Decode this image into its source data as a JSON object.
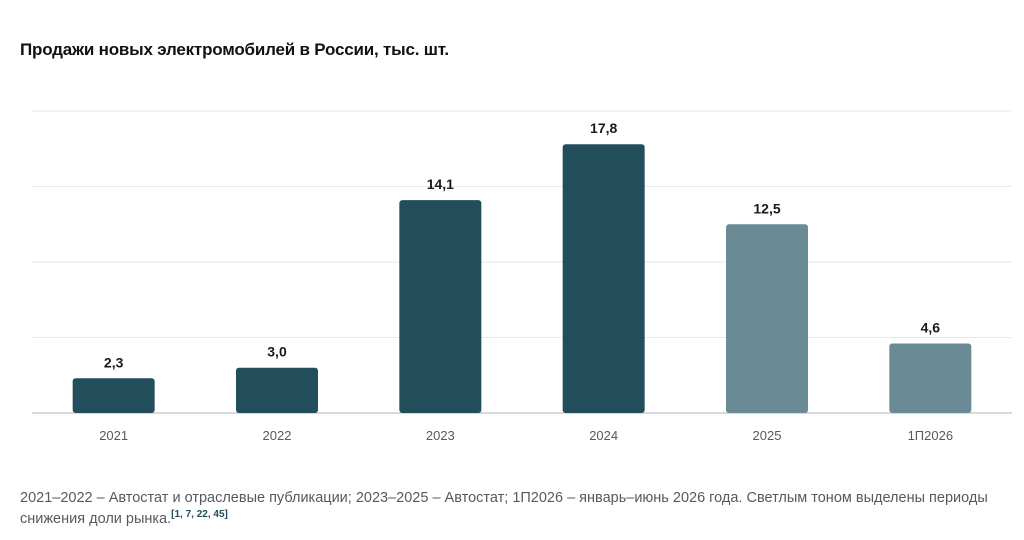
{
  "title": "Продажи новых электромобилей в России, тыс. шт.",
  "chart_data": {
    "type": "bar",
    "categories": [
      "2021",
      "2022",
      "2023",
      "2024",
      "2025",
      "1П2026"
    ],
    "values": [
      2.3,
      3.0,
      14.1,
      17.8,
      12.5,
      4.6
    ],
    "value_labels": [
      "2,3",
      "3,0",
      "14,1",
      "17,8",
      "12,5",
      "4,6"
    ],
    "highlight_light": [
      false,
      false,
      false,
      false,
      true,
      true
    ],
    "ylim": [
      0,
      20
    ],
    "grid": true,
    "colors": {
      "dark": "#224d5b",
      "light": "#6a8b96",
      "grid": "#e6e8ea",
      "axis": "#c9cdd0"
    }
  },
  "note": {
    "text": "2021–2022 – Автостат и отраслевые публикации; 2023–2025 – Автостат; 1П2026 – январь–июнь 2026 года. Светлым тоном выделены периоды снижения доли рынка.",
    "refs": "[1, 7, 22, 45]"
  }
}
